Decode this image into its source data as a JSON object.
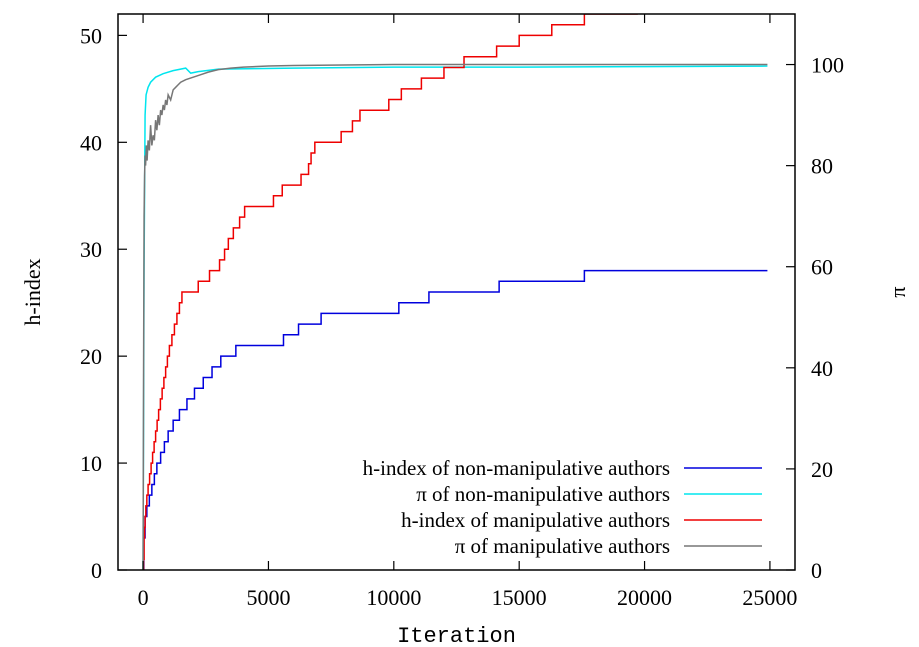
{
  "chart_data": {
    "type": "line",
    "xlabel": "Iteration",
    "ylabel": "h-index",
    "y2label": "π",
    "xlim": [
      -1000,
      26000
    ],
    "ylim": [
      0,
      52
    ],
    "y2lim": [
      0,
      110
    ],
    "grid": false,
    "legend_position": "bottom-right",
    "x_ticks": [
      0,
      5000,
      10000,
      15000,
      20000,
      25000
    ],
    "x_tick_labels": [
      "0",
      "5000",
      "10000",
      "15000",
      "20000",
      "25000"
    ],
    "y_ticks": [
      0,
      10,
      20,
      30,
      40,
      50
    ],
    "y_tick_labels": [
      "0",
      "10",
      "20",
      "30",
      "40",
      "50"
    ],
    "y2_ticks": [
      0,
      20,
      40,
      60,
      80,
      100
    ],
    "y2_tick_labels": [
      "0",
      "20",
      "40",
      "60",
      "80",
      "100"
    ],
    "series": [
      {
        "name": "h-index of non-manipulative authors",
        "axis": "left",
        "color": "#0000dd",
        "step": true,
        "x": [
          0,
          30,
          80,
          150,
          250,
          350,
          450,
          550,
          700,
          850,
          1000,
          1200,
          1450,
          1750,
          2050,
          2400,
          2750,
          3100,
          3700,
          5600,
          6200,
          7100,
          10200,
          11400,
          14200,
          17600,
          24900
        ],
        "y": [
          0,
          3,
          5,
          6,
          7,
          8,
          9,
          10,
          11,
          12,
          13,
          14,
          15,
          16,
          17,
          18,
          19,
          20,
          21,
          22,
          23,
          24,
          25,
          26,
          27,
          28,
          28
        ]
      },
      {
        "name": "π of non-manipulative authors",
        "axis": "right",
        "color": "#00e5ee",
        "step": false,
        "x": [
          0,
          40,
          80,
          120,
          200,
          300,
          500,
          800,
          1200,
          1700,
          1900,
          2200,
          3000,
          4500,
          6000,
          8000,
          10000,
          15000,
          20000,
          24900
        ],
        "y": [
          0,
          60,
          90,
          94,
          95.5,
          96.5,
          97.5,
          98.2,
          98.8,
          99.3,
          98.3,
          98.6,
          99.1,
          99.2,
          99.3,
          99.4,
          99.5,
          99.5,
          99.6,
          99.7
        ]
      },
      {
        "name": "h-index of manipulative authors",
        "axis": "left",
        "color": "#ee0000",
        "step": true,
        "x": [
          0,
          20,
          40,
          60,
          80,
          110,
          150,
          200,
          260,
          320,
          380,
          440,
          500,
          560,
          620,
          690,
          760,
          830,
          900,
          970,
          1050,
          1150,
          1250,
          1350,
          1450,
          1550,
          2200,
          2650,
          3050,
          3250,
          3400,
          3600,
          3850,
          4050,
          5200,
          5550,
          6300,
          6600,
          6700,
          6850,
          7900,
          8350,
          8650,
          9800,
          10300,
          11100,
          12000,
          12800,
          14100,
          15000,
          16300,
          17600,
          19700,
          20200,
          20500,
          23000,
          24800
        ],
        "y": [
          0,
          1,
          3,
          4,
          5,
          6,
          7,
          8,
          9,
          10,
          11,
          12,
          13,
          14,
          15,
          16,
          17,
          18,
          19,
          20,
          21,
          22,
          23,
          24,
          25,
          26,
          27,
          28,
          29,
          30,
          31,
          32,
          33,
          34,
          35,
          36,
          37,
          38,
          39,
          40,
          41,
          42,
          43,
          44,
          45,
          46,
          47,
          48,
          49,
          50,
          51,
          52,
          53,
          54,
          55,
          56,
          57
        ]
      },
      {
        "name": "π of manipulative authors",
        "axis": "right",
        "color": "#777777",
        "step": false,
        "x": [
          0,
          20,
          40,
          60,
          80,
          100,
          130,
          160,
          200,
          250,
          300,
          350,
          400,
          450,
          500,
          550,
          600,
          650,
          700,
          750,
          800,
          850,
          900,
          950,
          1000,
          1100,
          1200,
          1300,
          1400,
          1500,
          1700,
          2000,
          2300,
          2600,
          3000,
          3500,
          4000,
          5000,
          6000,
          8000,
          10000,
          15000,
          20000,
          24900
        ],
        "y": [
          0,
          40,
          70,
          78,
          82,
          80,
          84,
          81,
          85,
          83,
          88,
          84,
          86,
          85,
          89,
          87,
          90,
          88,
          91,
          90,
          92,
          91,
          93,
          92,
          94,
          93,
          95,
          95.5,
          96,
          96.5,
          97,
          97.5,
          98,
          98.5,
          99,
          99.3,
          99.5,
          99.7,
          99.8,
          99.9,
          100,
          100,
          100,
          100
        ]
      }
    ]
  }
}
